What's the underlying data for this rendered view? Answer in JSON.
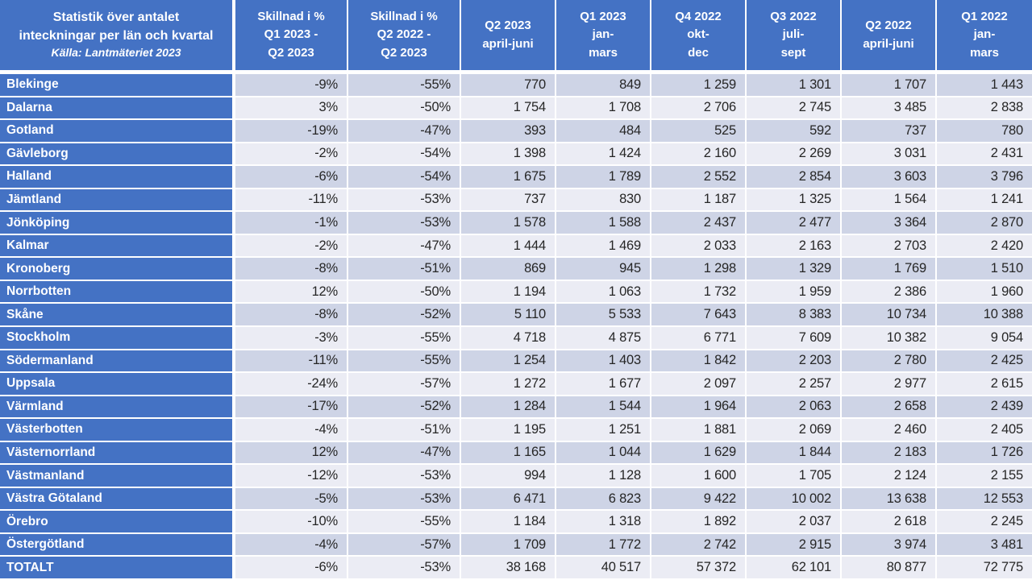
{
  "meta": {
    "colors": {
      "header_blue": "#4472C4",
      "band_dark": "#CED4E6",
      "band_light": "#EBECF4",
      "grid_white": "#FFFFFF",
      "data_text": "#262626",
      "header_text": "#FFFFFF"
    }
  },
  "chart_data": {
    "type": "table",
    "title": "Statistik över antalet inteckningar per län och kvartal",
    "source": "Källa: Lantmäteriet 2023",
    "columns": [
      {
        "lines": [
          "Skillnad i %",
          "Q1 2023 -",
          "Q2 2023"
        ]
      },
      {
        "lines": [
          "Skillnad i %",
          "Q2 2022 -",
          "Q2 2023"
        ]
      },
      {
        "lines": [
          "Q2 2023",
          "april-juni"
        ]
      },
      {
        "lines": [
          "Q1 2023",
          "jan-",
          "mars"
        ]
      },
      {
        "lines": [
          "Q4 2022",
          "okt-",
          "dec"
        ]
      },
      {
        "lines": [
          "Q3 2022",
          "juli-",
          "sept"
        ]
      },
      {
        "lines": [
          "Q2 2022",
          "april-juni"
        ]
      },
      {
        "lines": [
          "Q1 2022",
          "jan-",
          "mars"
        ]
      }
    ],
    "rows": [
      {
        "name": "Blekinge",
        "values": [
          "-9%",
          "-55%",
          "770",
          "849",
          "1 259",
          "1 301",
          "1 707",
          "1 443"
        ]
      },
      {
        "name": "Dalarna",
        "values": [
          "3%",
          "-50%",
          "1 754",
          "1 708",
          "2 706",
          "2 745",
          "3 485",
          "2 838"
        ]
      },
      {
        "name": "Gotland",
        "values": [
          "-19%",
          "-47%",
          "393",
          "484",
          "525",
          "592",
          "737",
          "780"
        ]
      },
      {
        "name": "Gävleborg",
        "values": [
          "-2%",
          "-54%",
          "1 398",
          "1 424",
          "2 160",
          "2 269",
          "3 031",
          "2 431"
        ]
      },
      {
        "name": "Halland",
        "values": [
          "-6%",
          "-54%",
          "1 675",
          "1 789",
          "2 552",
          "2 854",
          "3 603",
          "3 796"
        ]
      },
      {
        "name": "Jämtland",
        "values": [
          "-11%",
          "-53%",
          "737",
          "830",
          "1 187",
          "1 325",
          "1 564",
          "1 241"
        ]
      },
      {
        "name": "Jönköping",
        "values": [
          "-1%",
          "-53%",
          "1 578",
          "1 588",
          "2 437",
          "2 477",
          "3 364",
          "2 870"
        ]
      },
      {
        "name": "Kalmar",
        "values": [
          "-2%",
          "-47%",
          "1 444",
          "1 469",
          "2 033",
          "2 163",
          "2 703",
          "2 420"
        ]
      },
      {
        "name": "Kronoberg",
        "values": [
          "-8%",
          "-51%",
          "869",
          "945",
          "1 298",
          "1 329",
          "1 769",
          "1 510"
        ]
      },
      {
        "name": "Norrbotten",
        "values": [
          "12%",
          "-50%",
          "1 194",
          "1 063",
          "1 732",
          "1 959",
          "2 386",
          "1 960"
        ]
      },
      {
        "name": "Skåne",
        "values": [
          "-8%",
          "-52%",
          "5 110",
          "5 533",
          "7 643",
          "8 383",
          "10 734",
          "10 388"
        ]
      },
      {
        "name": "Stockholm",
        "values": [
          "-3%",
          "-55%",
          "4 718",
          "4 875",
          "6 771",
          "7 609",
          "10 382",
          "9 054"
        ]
      },
      {
        "name": "Södermanland",
        "values": [
          "-11%",
          "-55%",
          "1 254",
          "1 403",
          "1 842",
          "2 203",
          "2 780",
          "2 425"
        ]
      },
      {
        "name": "Uppsala",
        "values": [
          "-24%",
          "-57%",
          "1 272",
          "1 677",
          "2 097",
          "2 257",
          "2 977",
          "2 615"
        ]
      },
      {
        "name": "Värmland",
        "values": [
          "-17%",
          "-52%",
          "1 284",
          "1 544",
          "1 964",
          "2 063",
          "2 658",
          "2 439"
        ]
      },
      {
        "name": "Västerbotten",
        "values": [
          "-4%",
          "-51%",
          "1 195",
          "1 251",
          "1 881",
          "2 069",
          "2 460",
          "2 405"
        ]
      },
      {
        "name": "Västernorrland",
        "values": [
          "12%",
          "-47%",
          "1 165",
          "1 044",
          "1 629",
          "1 844",
          "2 183",
          "1 726"
        ]
      },
      {
        "name": "Västmanland",
        "values": [
          "-12%",
          "-53%",
          "994",
          "1 128",
          "1 600",
          "1 705",
          "2 124",
          "2 155"
        ]
      },
      {
        "name": "Västra Götaland",
        "values": [
          "-5%",
          "-53%",
          "6 471",
          "6 823",
          "9 422",
          "10 002",
          "13 638",
          "12 553"
        ]
      },
      {
        "name": "Örebro",
        "values": [
          "-10%",
          "-55%",
          "1 184",
          "1 318",
          "1 892",
          "2 037",
          "2 618",
          "2 245"
        ]
      },
      {
        "name": "Östergötland",
        "values": [
          "-4%",
          "-57%",
          "1 709",
          "1 772",
          "2 742",
          "2 915",
          "3 974",
          "3 481"
        ]
      },
      {
        "name": "TOTALT",
        "values": [
          "-6%",
          "-53%",
          "38 168",
          "40 517",
          "57 372",
          "62 101",
          "80 877",
          "72 775"
        ]
      }
    ],
    "header": {
      "title_line1": "Statistik över antalet",
      "title_line2": "inteckningar per län och kvartal",
      "source": "Källa: Lantmäteriet 2023"
    }
  }
}
